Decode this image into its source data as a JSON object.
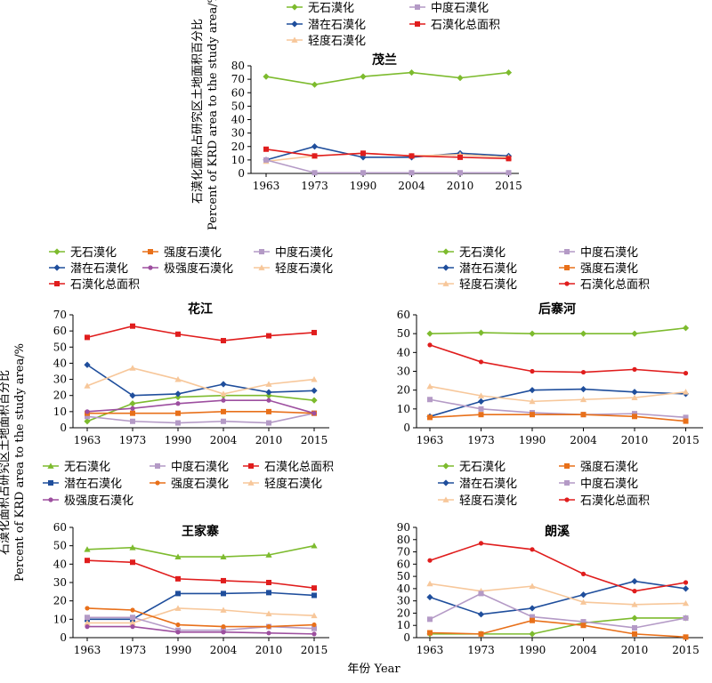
{
  "figure": {
    "ylabel_cn": "石漠化面积占研究区土地面积百分比",
    "ylabel_en": "Percent of KRD area to the study area/%",
    "xlabel": "年份 Year"
  },
  "colors": {
    "无石漠化": "#7dbb2e",
    "潜在石漠化": "#1f4e9c",
    "轻度石漠化": "#f7c79a",
    "中度石漠化": "#b49ac6",
    "强度石漠化": "#e8701a",
    "极强度石漠化": "#9d4f9f",
    "石漠化总面积": "#e01d1d"
  },
  "chart_data": [
    {
      "id": "maolan",
      "type": "line",
      "title": "茂兰",
      "categories": [
        "1963",
        "1973",
        "1990",
        "2004",
        "2010",
        "2015"
      ],
      "ylim": [
        0,
        80
      ],
      "yticks": [
        0,
        10,
        20,
        30,
        40,
        50,
        60,
        70,
        80
      ],
      "grid": false,
      "legend_order": [
        "无石漠化",
        "中度石漠化",
        "潜在石漠化",
        "石漠化总面积",
        "轻度石漠化"
      ],
      "series": [
        {
          "name": "无石漠化",
          "marker": "diamond",
          "values": [
            72,
            66,
            72,
            75,
            71,
            75
          ]
        },
        {
          "name": "潜在石漠化",
          "marker": "diamond",
          "values": [
            10,
            20,
            12,
            12,
            15,
            13
          ]
        },
        {
          "name": "轻度石漠化",
          "marker": "triangle",
          "values": [
            9,
            13,
            15,
            13,
            14,
            12
          ]
        },
        {
          "name": "中度石漠化",
          "marker": "square",
          "values": [
            10,
            0.5,
            0.5,
            0.5,
            0.5,
            0.5
          ]
        },
        {
          "name": "石漠化总面积",
          "marker": "square",
          "values": [
            18,
            13,
            15,
            13,
            12,
            11
          ]
        }
      ]
    },
    {
      "id": "huajiang",
      "type": "line",
      "title": "花江",
      "categories": [
        "1963",
        "1973",
        "1990",
        "2004",
        "2010",
        "2015"
      ],
      "ylim": [
        0,
        70
      ],
      "yticks": [
        0,
        10,
        20,
        30,
        40,
        50,
        60,
        70
      ],
      "grid": false,
      "legend_order": [
        "无石漠化",
        "强度石漠化",
        "中度石漠化",
        "潜在石漠化",
        "极强度石漠化",
        "轻度石漠化",
        "石漠化总面积"
      ],
      "series": [
        {
          "name": "无石漠化",
          "marker": "diamond",
          "values": [
            4,
            15,
            19,
            20,
            20,
            17
          ]
        },
        {
          "name": "潜在石漠化",
          "marker": "diamond",
          "values": [
            39,
            20,
            21,
            27,
            22,
            23
          ]
        },
        {
          "name": "轻度石漠化",
          "marker": "triangle",
          "values": [
            26,
            37,
            30,
            21,
            27,
            30
          ]
        },
        {
          "name": "中度石漠化",
          "marker": "square",
          "values": [
            7,
            4,
            3,
            4,
            3,
            9
          ]
        },
        {
          "name": "强度石漠化",
          "marker": "square",
          "values": [
            9,
            9,
            9,
            10,
            10,
            9
          ]
        },
        {
          "name": "极强度石漠化",
          "marker": "circle",
          "values": [
            10,
            12,
            15,
            17,
            17,
            9
          ]
        },
        {
          "name": "石漠化总面积",
          "marker": "square",
          "values": [
            56,
            63,
            58,
            54,
            57,
            59
          ]
        }
      ]
    },
    {
      "id": "houzhaihe",
      "type": "line",
      "title": "后寨河",
      "categories": [
        "1963",
        "1973",
        "1990",
        "2004",
        "2010",
        "2015"
      ],
      "ylim": [
        0,
        60
      ],
      "yticks": [
        0,
        10,
        20,
        30,
        40,
        50,
        60
      ],
      "grid": false,
      "legend_order": [
        "无石漠化",
        "中度石漠化",
        "潜在石漠化",
        "强度石漠化",
        "轻度石漠化",
        "石漠化总面积"
      ],
      "series": [
        {
          "name": "无石漠化",
          "marker": "diamond",
          "values": [
            50,
            50.5,
            50,
            50,
            50,
            53
          ]
        },
        {
          "name": "潜在石漠化",
          "marker": "diamond",
          "values": [
            6,
            14,
            20,
            20.5,
            19,
            18
          ]
        },
        {
          "name": "轻度石漠化",
          "marker": "triangle",
          "values": [
            22,
            17,
            14,
            15,
            16,
            19
          ]
        },
        {
          "name": "中度石漠化",
          "marker": "square",
          "values": [
            15,
            10,
            8,
            7,
            7.5,
            5.5
          ]
        },
        {
          "name": "强度石漠化",
          "marker": "square",
          "values": [
            5.5,
            7,
            7,
            7,
            6,
            3.5
          ]
        },
        {
          "name": "石漠化总面积",
          "marker": "circle",
          "values": [
            44,
            35,
            30,
            29.5,
            31,
            29
          ]
        }
      ]
    },
    {
      "id": "wangjiazhai",
      "type": "line",
      "title": "王家寨",
      "categories": [
        "1963",
        "1973",
        "1990",
        "2004",
        "2010",
        "2015"
      ],
      "ylim": [
        0,
        60
      ],
      "yticks": [
        0,
        10,
        20,
        30,
        40,
        50,
        60
      ],
      "grid": false,
      "legend_order": [
        "无石漠化",
        "中度石漠化",
        "石漠化总面积",
        "潜在石漠化",
        "强度石漠化",
        "轻度石漠化",
        "极强度石漠化"
      ],
      "series": [
        {
          "name": "无石漠化",
          "marker": "triangle",
          "values": [
            48,
            49,
            44,
            44,
            45,
            50
          ]
        },
        {
          "name": "潜在石漠化",
          "marker": "square",
          "values": [
            10,
            10,
            24,
            24,
            24.5,
            23
          ]
        },
        {
          "name": "轻度石漠化",
          "marker": "triangle",
          "values": [
            8,
            8,
            16,
            15,
            13,
            12
          ]
        },
        {
          "name": "中度石漠化",
          "marker": "square",
          "values": [
            11,
            11,
            4,
            4,
            6,
            5
          ]
        },
        {
          "name": "强度石漠化",
          "marker": "circle",
          "values": [
            16,
            15,
            7,
            6,
            6,
            7
          ]
        },
        {
          "name": "极强度石漠化",
          "marker": "circle",
          "values": [
            6,
            6,
            3,
            3,
            2.5,
            2
          ]
        },
        {
          "name": "石漠化总面积",
          "marker": "square",
          "values": [
            42,
            41,
            32,
            31,
            30,
            27
          ]
        }
      ]
    },
    {
      "id": "langxi",
      "type": "line",
      "title": "朗溪",
      "categories": [
        "1963",
        "1973",
        "1990",
        "2004",
        "2010",
        "2015"
      ],
      "ylim": [
        0,
        90
      ],
      "yticks": [
        0,
        10,
        20,
        30,
        40,
        50,
        60,
        70,
        80,
        90
      ],
      "grid": false,
      "legend_order": [
        "无石漠化",
        "强度石漠化",
        "潜在石漠化",
        "中度石漠化",
        "轻度石漠化",
        "石漠化总面积"
      ],
      "series": [
        {
          "name": "无石漠化",
          "marker": "diamond",
          "values": [
            3,
            3,
            3,
            12,
            16,
            16
          ]
        },
        {
          "name": "潜在石漠化",
          "marker": "diamond",
          "values": [
            33,
            19,
            24,
            35,
            46,
            40
          ]
        },
        {
          "name": "轻度石漠化",
          "marker": "triangle",
          "values": [
            44,
            38,
            42,
            29,
            27,
            28
          ]
        },
        {
          "name": "中度石漠化",
          "marker": "square",
          "values": [
            15,
            36,
            17,
            13,
            8,
            16
          ]
        },
        {
          "name": "强度石漠化",
          "marker": "square",
          "values": [
            4,
            3,
            14,
            10,
            3,
            0.5
          ]
        },
        {
          "name": "石漠化总面积",
          "marker": "circle",
          "values": [
            63,
            77,
            72,
            52,
            38,
            45
          ]
        }
      ]
    }
  ]
}
